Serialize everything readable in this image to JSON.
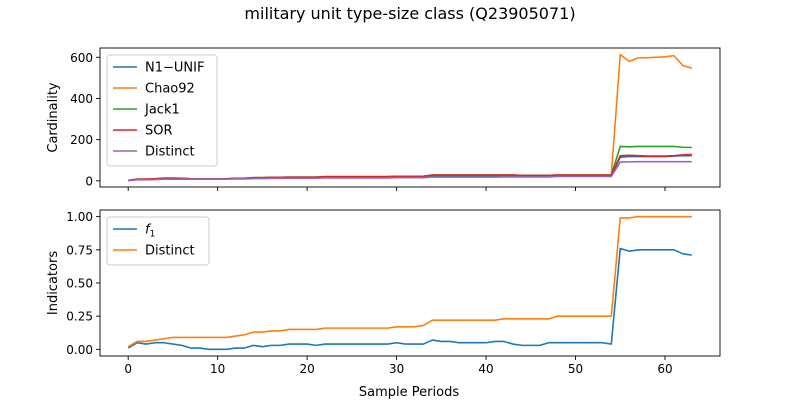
{
  "figure": {
    "title": "military unit type-size class (Q23905071)",
    "xlabel": "Sample Periods"
  },
  "chart_data": [
    {
      "type": "line",
      "ylabel": "Cardinality",
      "xlim": [
        -3.15,
        66.15
      ],
      "ylim": [
        -30,
        645
      ],
      "xticks": [
        0,
        10,
        20,
        30,
        40,
        50,
        60
      ],
      "yticks": [
        0,
        200,
        400,
        600
      ],
      "xtick_labels_shown": false,
      "legend": "upper-left",
      "x": [
        0,
        1,
        2,
        3,
        4,
        5,
        6,
        7,
        8,
        9,
        10,
        11,
        12,
        13,
        14,
        15,
        16,
        17,
        18,
        19,
        20,
        21,
        22,
        23,
        24,
        25,
        26,
        27,
        28,
        29,
        30,
        31,
        32,
        33,
        34,
        35,
        36,
        37,
        38,
        39,
        40,
        41,
        42,
        43,
        44,
        45,
        46,
        47,
        48,
        49,
        50,
        51,
        52,
        53,
        54,
        55,
        56,
        57,
        58,
        59,
        60,
        61,
        62,
        63
      ],
      "series": [
        {
          "name": "N1−UNIF",
          "color": "#1f77b4",
          "values": [
            2,
            7,
            7,
            8,
            11,
            11,
            10,
            9,
            8,
            8,
            8,
            9,
            10,
            10,
            13,
            13,
            15,
            15,
            16,
            16,
            16,
            16,
            17,
            17,
            17,
            17,
            17,
            17,
            17,
            17,
            19,
            19,
            19,
            19,
            24,
            24,
            24,
            24,
            24,
            24,
            24,
            24,
            24,
            24,
            22,
            22,
            22,
            22,
            24,
            24,
            24,
            24,
            24,
            24,
            24,
            115,
            118,
            118,
            118,
            118,
            118,
            120,
            122,
            122
          ]
        },
        {
          "name": "Chao92",
          "color": "#ff7f0e",
          "values": [
            2,
            8,
            8,
            10,
            13,
            13,
            12,
            10,
            9,
            9,
            9,
            10,
            12,
            12,
            15,
            15,
            17,
            17,
            18,
            18,
            18,
            18,
            20,
            20,
            20,
            20,
            20,
            20,
            20,
            20,
            22,
            22,
            22,
            22,
            28,
            28,
            28,
            28,
            28,
            28,
            28,
            28,
            28,
            28,
            26,
            26,
            26,
            26,
            28,
            28,
            28,
            28,
            28,
            28,
            28,
            613,
            580,
            597,
            598,
            600,
            602,
            608,
            560,
            547
          ]
        },
        {
          "name": "Jack1",
          "color": "#2ca02c",
          "values": [
            2,
            8,
            8,
            10,
            13,
            13,
            12,
            10,
            9,
            9,
            9,
            10,
            12,
            12,
            15,
            15,
            17,
            17,
            18,
            18,
            18,
            18,
            20,
            20,
            20,
            20,
            20,
            20,
            20,
            20,
            22,
            22,
            22,
            22,
            28,
            28,
            28,
            28,
            28,
            28,
            28,
            28,
            28,
            28,
            26,
            26,
            26,
            26,
            28,
            28,
            28,
            28,
            28,
            28,
            28,
            167,
            165,
            167,
            167,
            167,
            167,
            167,
            163,
            162
          ]
        },
        {
          "name": "SOR",
          "color": "#d62728",
          "values": [
            2,
            8,
            8,
            10,
            13,
            13,
            12,
            10,
            9,
            9,
            9,
            10,
            12,
            12,
            15,
            15,
            17,
            17,
            18,
            18,
            18,
            18,
            20,
            20,
            20,
            20,
            20,
            20,
            20,
            20,
            22,
            22,
            22,
            22,
            28,
            28,
            28,
            28,
            28,
            28,
            28,
            28,
            28,
            28,
            26,
            26,
            26,
            26,
            28,
            28,
            28,
            28,
            28,
            28,
            28,
            122,
            124,
            122,
            120,
            120,
            120,
            122,
            126,
            128
          ]
        },
        {
          "name": "Distinct",
          "color": "#9467bd",
          "values": [
            1,
            5,
            5,
            6,
            8,
            8,
            8,
            8,
            8,
            8,
            8,
            8,
            9,
            9,
            11,
            11,
            12,
            12,
            13,
            13,
            13,
            13,
            14,
            14,
            14,
            14,
            14,
            14,
            14,
            14,
            15,
            15,
            15,
            15,
            18,
            18,
            18,
            18,
            18,
            18,
            18,
            18,
            19,
            19,
            19,
            19,
            19,
            19,
            21,
            21,
            21,
            21,
            21,
            21,
            21,
            91,
            92,
            93,
            93,
            93,
            93,
            93,
            93,
            93
          ]
        }
      ]
    },
    {
      "type": "line",
      "ylabel": "Indicators",
      "xlim": [
        -3.15,
        66.15
      ],
      "ylim": [
        -0.05,
        1.05
      ],
      "xticks": [
        0,
        10,
        20,
        30,
        40,
        50,
        60
      ],
      "yticks": [
        0.0,
        0.25,
        0.5,
        0.75,
        1.0
      ],
      "ytick_labels": [
        "0.00",
        "0.25",
        "0.50",
        "0.75",
        "1.00"
      ],
      "legend": "upper-left",
      "x": [
        0,
        1,
        2,
        3,
        4,
        5,
        6,
        7,
        8,
        9,
        10,
        11,
        12,
        13,
        14,
        15,
        16,
        17,
        18,
        19,
        20,
        21,
        22,
        23,
        24,
        25,
        26,
        27,
        28,
        29,
        30,
        31,
        32,
        33,
        34,
        35,
        36,
        37,
        38,
        39,
        40,
        41,
        42,
        43,
        44,
        45,
        46,
        47,
        48,
        49,
        50,
        51,
        52,
        53,
        54,
        55,
        56,
        57,
        58,
        59,
        60,
        61,
        62,
        63
      ],
      "series": [
        {
          "name_main": "f",
          "name_sub": "1",
          "color": "#1f77b4",
          "values": [
            0.01,
            0.05,
            0.04,
            0.05,
            0.05,
            0.04,
            0.03,
            0.01,
            0.01,
            0.0,
            0.0,
            0.0,
            0.01,
            0.01,
            0.03,
            0.02,
            0.03,
            0.03,
            0.04,
            0.04,
            0.04,
            0.03,
            0.04,
            0.04,
            0.04,
            0.04,
            0.04,
            0.04,
            0.04,
            0.04,
            0.05,
            0.04,
            0.04,
            0.04,
            0.07,
            0.06,
            0.06,
            0.05,
            0.05,
            0.05,
            0.05,
            0.06,
            0.06,
            0.04,
            0.03,
            0.03,
            0.03,
            0.05,
            0.05,
            0.05,
            0.05,
            0.05,
            0.05,
            0.05,
            0.04,
            0.76,
            0.74,
            0.75,
            0.75,
            0.75,
            0.75,
            0.75,
            0.72,
            0.71
          ]
        },
        {
          "name": "Distinct",
          "color": "#ff7f0e",
          "values": [
            0.02,
            0.06,
            0.06,
            0.07,
            0.08,
            0.09,
            0.09,
            0.09,
            0.09,
            0.09,
            0.09,
            0.09,
            0.1,
            0.11,
            0.13,
            0.13,
            0.14,
            0.14,
            0.15,
            0.15,
            0.15,
            0.15,
            0.16,
            0.16,
            0.16,
            0.16,
            0.16,
            0.16,
            0.16,
            0.16,
            0.17,
            0.17,
            0.17,
            0.18,
            0.22,
            0.22,
            0.22,
            0.22,
            0.22,
            0.22,
            0.22,
            0.22,
            0.23,
            0.23,
            0.23,
            0.23,
            0.23,
            0.23,
            0.25,
            0.25,
            0.25,
            0.25,
            0.25,
            0.25,
            0.25,
            0.99,
            0.99,
            1.0,
            1.0,
            1.0,
            1.0,
            1.0,
            1.0,
            1.0
          ]
        }
      ]
    }
  ]
}
